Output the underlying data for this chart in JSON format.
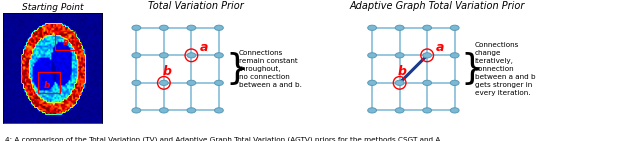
{
  "title": "Starting Point",
  "tv_title": "Total Variation Prior",
  "agtv_title": "Adaptive Graph Total Variation Prior",
  "caption": "4: A comparison of the Total Variation (TV) and Adaptive Graph Total Variation (AGTV) priors for the methods CSGT and A",
  "node_color": "#7ab8d4",
  "node_edge_color": "#5a9ab8",
  "line_color": "#7ab8d4",
  "strong_line_color": "#1a3a8a",
  "label_color": "red",
  "grid_rows": 4,
  "grid_cols": 4,
  "tv_text": "Connections\nremain constant\nthroughout,\nno connection\nbetween a and b.",
  "agtv_text": "Connections\nchange\niteratively,\nconnection\nbetween a and b\ngets stronger in\nevery iteration.",
  "bg_color": "white"
}
